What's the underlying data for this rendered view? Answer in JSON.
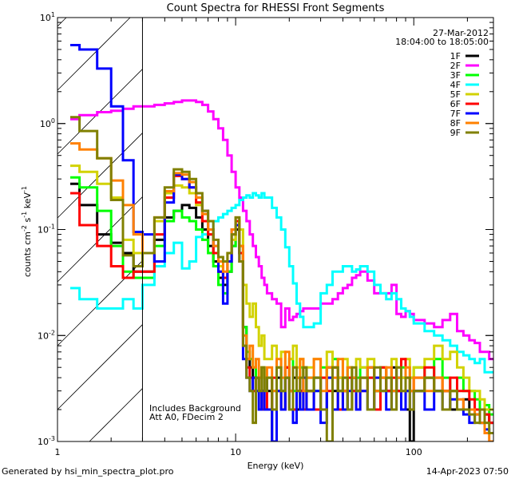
{
  "chart_data": {
    "type": "line",
    "title": "Count Spectra for RHESSI Front Segments",
    "xlabel": "Energy (keV)",
    "ylabel": {
      "base": "counts cm",
      "e1": "-2",
      "mid": " s",
      "e2": "-1",
      "end": " keV",
      "e3": "-1"
    },
    "xscale": "log",
    "yscale": "log",
    "xlim": [
      1,
      280
    ],
    "ylim": [
      0.001,
      10
    ],
    "x_ticks": [
      {
        "value": 1,
        "label": "1"
      },
      {
        "value": 10,
        "label": "10"
      },
      {
        "value": 100,
        "label": "100"
      }
    ],
    "y_ticks": [
      {
        "value": 10,
        "base": "10",
        "exp": "1"
      },
      {
        "value": 1,
        "base": "10",
        "exp": "0"
      },
      {
        "value": 0.1,
        "base": "10",
        "exp": "-1"
      },
      {
        "value": 0.01,
        "base": "10",
        "exp": "-2"
      },
      {
        "value": 0.001,
        "base": "10",
        "exp": "-3"
      }
    ],
    "date": "27-Mar-2012",
    "time_range": "18:04:00 to 18:05:00",
    "hatched_region_keV": [
      1,
      3
    ],
    "annotations": [
      "Includes Background",
      "Att A0, FDecim 2"
    ],
    "legend_position": "top-right",
    "bin_edges_keV": [
      1.18,
      1.33,
      1.67,
      2.0,
      2.33,
      2.67,
      3.0,
      3.5,
      4,
      4.5,
      5,
      5.5,
      6,
      6.5,
      7,
      7.5,
      8,
      8.5,
      9,
      9.5,
      10,
      10.5,
      11,
      11.5,
      12,
      12.5,
      13,
      13.5,
      14,
      14.5,
      15,
      16,
      17,
      18,
      19,
      20,
      21,
      22,
      23,
      24,
      25,
      27.5,
      30,
      32.5,
      35,
      37.5,
      40,
      42.5,
      45,
      47.5,
      50,
      55,
      60,
      65,
      70,
      75,
      80,
      85,
      90,
      95,
      100,
      115,
      130,
      145,
      160,
      175,
      190,
      205,
      220,
      235,
      250,
      265,
      280
    ],
    "series": [
      {
        "name": "1F",
        "color": "#000000",
        "values": [
          0.27,
          0.17,
          0.09,
          0.075,
          0.06,
          0.04,
          0.04,
          0.08,
          0.13,
          0.15,
          0.17,
          0.16,
          0.13,
          0.1,
          0.07,
          0.05,
          0.035,
          0.03,
          0.04,
          0.07,
          0.1,
          0.06,
          0.012,
          0.006,
          0.005,
          0.004,
          0.004,
          0.003,
          0.003,
          0.004,
          0.003,
          0.001,
          0.004,
          0.002,
          0.005,
          0.003,
          0.004,
          0.002,
          0.003,
          0.005,
          0.003,
          0.004,
          0.002,
          0.005,
          0.003,
          0.004,
          0.003,
          0.002,
          0.004,
          0.003,
          0.004,
          0.005,
          0.003,
          0.004,
          0.003,
          0.005,
          0.003,
          0.004,
          0.002,
          0.001,
          0.003,
          0.004,
          0.003,
          0.003,
          0.002,
          0.002,
          0.0025,
          0.002,
          0.002,
          0.0015,
          0.0018,
          0.0015
        ]
      },
      {
        "name": "2F",
        "color": "#ff00ff",
        "values": [
          1.1,
          1.2,
          1.28,
          1.32,
          1.38,
          1.45,
          1.45,
          1.5,
          1.55,
          1.6,
          1.65,
          1.65,
          1.6,
          1.5,
          1.3,
          1.1,
          0.9,
          0.7,
          0.5,
          0.35,
          0.25,
          0.2,
          0.15,
          0.12,
          0.09,
          0.07,
          0.055,
          0.045,
          0.035,
          0.03,
          0.025,
          0.022,
          0.02,
          0.012,
          0.018,
          0.014,
          0.015,
          0.016,
          0.017,
          0.018,
          0.018,
          0.018,
          0.02,
          0.02,
          0.022,
          0.025,
          0.028,
          0.03,
          0.035,
          0.037,
          0.04,
          0.033,
          0.025,
          0.025,
          0.025,
          0.03,
          0.016,
          0.015,
          0.017,
          0.016,
          0.014,
          0.013,
          0.012,
          0.014,
          0.016,
          0.011,
          0.01,
          0.009,
          0.0085,
          0.007,
          0.007,
          0.006
        ]
      },
      {
        "name": "3F",
        "color": "#00ff00",
        "values": [
          0.31,
          0.25,
          0.15,
          0.07,
          0.04,
          0.035,
          0.035,
          0.07,
          0.12,
          0.15,
          0.13,
          0.12,
          0.1,
          0.08,
          0.06,
          0.045,
          0.03,
          0.025,
          0.04,
          0.07,
          0.12,
          0.07,
          0.012,
          0.007,
          0.006,
          0.005,
          0.004,
          0.004,
          0.005,
          0.004,
          0.004,
          0.003,
          0.005,
          0.003,
          0.004,
          0.006,
          0.003,
          0.004,
          0.005,
          0.003,
          0.004,
          0.003,
          0.005,
          0.004,
          0.006,
          0.003,
          0.004,
          0.005,
          0.003,
          0.004,
          0.005,
          0.004,
          0.003,
          0.005,
          0.004,
          0.003,
          0.004,
          0.005,
          0.003,
          0.004,
          0.005,
          0.004,
          0.006,
          0.004,
          0.003,
          0.004,
          0.003,
          0.003,
          0.0025,
          0.002,
          0.0022,
          0.0018
        ]
      },
      {
        "name": "4F",
        "color": "#00ffff",
        "values": [
          0.028,
          0.022,
          0.018,
          0.018,
          0.022,
          0.018,
          0.03,
          0.045,
          0.06,
          0.075,
          0.043,
          0.05,
          0.085,
          0.09,
          0.1,
          0.12,
          0.13,
          0.14,
          0.15,
          0.16,
          0.17,
          0.19,
          0.2,
          0.21,
          0.2,
          0.22,
          0.21,
          0.2,
          0.22,
          0.2,
          0.2,
          0.16,
          0.13,
          0.1,
          0.068,
          0.045,
          0.031,
          0.02,
          0.015,
          0.012,
          0.012,
          0.013,
          0.025,
          0.03,
          0.04,
          0.04,
          0.045,
          0.045,
          0.04,
          0.042,
          0.045,
          0.04,
          0.03,
          0.025,
          0.022,
          0.025,
          0.022,
          0.018,
          0.017,
          0.015,
          0.013,
          0.011,
          0.01,
          0.009,
          0.008,
          0.007,
          0.0065,
          0.006,
          0.0055,
          0.006,
          0.0045,
          0.0045
        ]
      },
      {
        "name": "5F",
        "color": "#d2d200",
        "values": [
          0.4,
          0.35,
          0.27,
          0.2,
          0.08,
          0.06,
          0.06,
          0.12,
          0.22,
          0.26,
          0.25,
          0.22,
          0.17,
          0.12,
          0.09,
          0.06,
          0.045,
          0.035,
          0.05,
          0.08,
          0.12,
          0.1,
          0.03,
          0.02,
          0.015,
          0.02,
          0.012,
          0.008,
          0.01,
          0.006,
          0.006,
          0.008,
          0.005,
          0.007,
          0.004,
          0.006,
          0.008,
          0.005,
          0.006,
          0.004,
          0.005,
          0.006,
          0.004,
          0.007,
          0.005,
          0.004,
          0.006,
          0.005,
          0.004,
          0.006,
          0.005,
          0.006,
          0.004,
          0.005,
          0.004,
          0.006,
          0.005,
          0.004,
          0.006,
          0.004,
          0.005,
          0.006,
          0.008,
          0.006,
          0.007,
          0.005,
          0.004,
          0.003,
          0.003,
          0.0025,
          0.002,
          0.002
        ]
      },
      {
        "name": "6F",
        "color": "#ff0000",
        "values": [
          0.22,
          0.11,
          0.07,
          0.045,
          0.035,
          0.04,
          0.04,
          0.09,
          0.2,
          0.32,
          0.3,
          0.25,
          0.18,
          0.12,
          0.09,
          0.06,
          0.04,
          0.035,
          0.05,
          0.09,
          0.12,
          0.06,
          0.008,
          0.005,
          0.004,
          0.003,
          0.004,
          0.003,
          0.002,
          0.003,
          0.002,
          0.004,
          0.003,
          0.002,
          0.005,
          0.003,
          0.002,
          0.004,
          0.003,
          0.002,
          0.003,
          0.002,
          0.004,
          0.003,
          0.005,
          0.002,
          0.003,
          0.004,
          0.003,
          0.002,
          0.003,
          0.004,
          0.002,
          0.005,
          0.003,
          0.004,
          0.003,
          0.006,
          0.004,
          0.003,
          0.004,
          0.005,
          0.004,
          0.003,
          0.004,
          0.003,
          0.003,
          0.0025,
          0.002,
          0.002,
          0.0018,
          0.0015
        ]
      },
      {
        "name": "7F",
        "color": "#0000ff",
        "values": [
          5.5,
          5.0,
          3.3,
          1.45,
          0.45,
          0.095,
          0.09,
          0.05,
          0.18,
          0.33,
          0.3,
          0.25,
          0.2,
          0.15,
          0.1,
          0.07,
          0.04,
          0.02,
          0.05,
          0.1,
          0.11,
          0.05,
          0.006,
          0.004,
          0.003,
          0.004,
          0.003,
          0.002,
          0.003,
          0.002,
          0.002,
          0.001,
          0.003,
          0.002,
          0.004,
          0.002,
          0.0015,
          0.003,
          0.002,
          0.004,
          0.002,
          0.003,
          0.0015,
          0.004,
          0.002,
          0.003,
          0.002,
          0.003,
          0.004,
          0.002,
          0.003,
          0.002,
          0.004,
          0.003,
          0.002,
          0.003,
          0.004,
          0.002,
          0.003,
          0.002,
          0.003,
          0.002,
          0.003,
          0.002,
          0.0025,
          0.002,
          0.0018,
          0.0015,
          0.0018,
          0.0015,
          0.0013,
          0.0012
        ]
      },
      {
        "name": "8F",
        "color": "#ff8000",
        "values": [
          0.65,
          0.57,
          0.47,
          0.29,
          0.17,
          0.09,
          0.06,
          0.13,
          0.23,
          0.34,
          0.33,
          0.28,
          0.2,
          0.14,
          0.1,
          0.07,
          0.05,
          0.04,
          0.06,
          0.1,
          0.13,
          0.07,
          0.01,
          0.006,
          0.008,
          0.005,
          0.006,
          0.004,
          0.005,
          0.004,
          0.005,
          0.003,
          0.006,
          0.004,
          0.007,
          0.003,
          0.005,
          0.004,
          0.006,
          0.003,
          0.004,
          0.006,
          0.003,
          0.005,
          0.004,
          0.006,
          0.003,
          0.005,
          0.004,
          0.003,
          0.004,
          0.005,
          0.003,
          0.004,
          0.005,
          0.003,
          0.004,
          0.003,
          0.005,
          0.003,
          0.004,
          0.003,
          0.004,
          0.003,
          0.003,
          0.0025,
          0.002,
          0.002,
          0.0018,
          0.0015,
          0.0012,
          0.001
        ]
      },
      {
        "name": "9F",
        "color": "#808000",
        "values": [
          1.15,
          0.85,
          0.47,
          0.19,
          0.057,
          0.045,
          0.06,
          0.13,
          0.25,
          0.37,
          0.35,
          0.3,
          0.22,
          0.15,
          0.12,
          0.08,
          0.055,
          0.05,
          0.06,
          0.09,
          0.13,
          0.05,
          0.008,
          0.004,
          0.003,
          0.0015,
          0.004,
          0.003,
          0.005,
          0.003,
          0.004,
          0.002,
          0.005,
          0.003,
          0.004,
          0.002,
          0.005,
          0.003,
          0.004,
          0.005,
          0.003,
          0.004,
          0.002,
          0.001,
          0.005,
          0.003,
          0.004,
          0.002,
          0.005,
          0.003,
          0.004,
          0.002,
          0.005,
          0.003,
          0.004,
          0.002,
          0.005,
          0.003,
          0.004,
          0.002,
          0.003,
          0.004,
          0.003,
          0.002,
          0.003,
          0.002,
          0.002,
          0.0018,
          0.0015,
          0.002,
          0.0015,
          0.0012
        ]
      }
    ]
  },
  "footer": {
    "generated_by": "Generated by hsi_min_spectra_plot.pro",
    "timestamp": "14-Apr-2023 07:50"
  }
}
